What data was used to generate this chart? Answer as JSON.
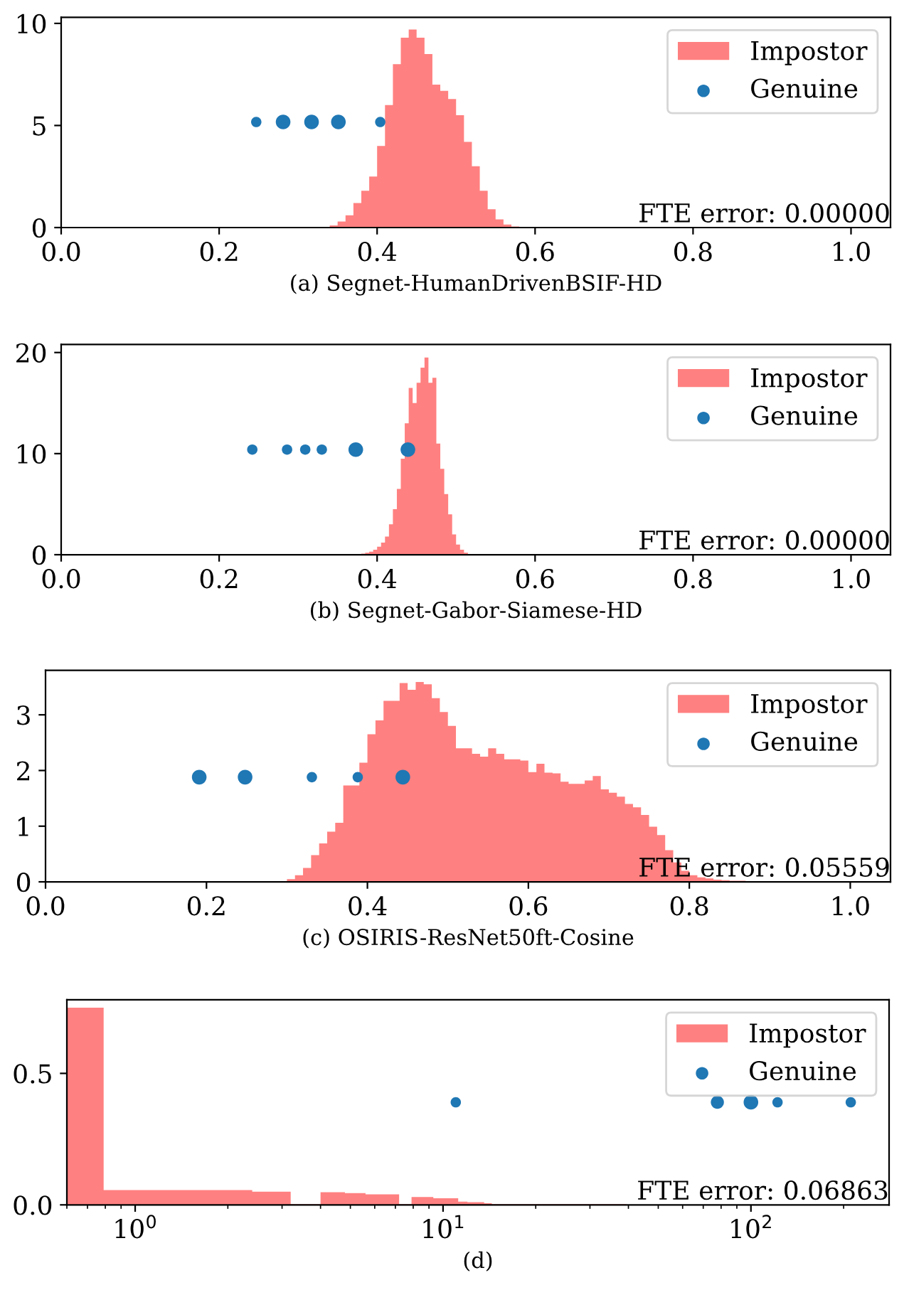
{
  "chart_data": [
    {
      "type": "histogram",
      "xlabel": "(a) Segnet-HumanDrivenBSIF-HD",
      "xlim": [
        0,
        1.05
      ],
      "ylim": [
        0,
        10.3
      ],
      "xticks": [
        {
          "value": 0,
          "label": "0.0"
        },
        0.2,
        0.4,
        0.6,
        0.8,
        {
          "value": 1,
          "label": "1.0"
        }
      ],
      "yticks": [
        0,
        5,
        10
      ],
      "legend": "top right",
      "annotations": [
        "FTE error: 0.00000"
      ],
      "series": [
        {
          "name": "Impostor",
          "color": "#ff8080",
          "bins": [
            0.34,
            0.35,
            0.36,
            0.37,
            0.38,
            0.39,
            0.4,
            0.41,
            0.42,
            0.43,
            0.44,
            0.45,
            0.46,
            0.47,
            0.48,
            0.49,
            0.5,
            0.51,
            0.52,
            0.53,
            0.54,
            0.55,
            0.56,
            0.57,
            0.58,
            0.59
          ],
          "values": [
            0.1,
            0.3,
            0.6,
            1.2,
            1.8,
            2.5,
            4.0,
            6.0,
            8.0,
            9.3,
            9.7,
            9.3,
            8.5,
            7.0,
            6.7,
            6.3,
            5.5,
            4.2,
            3.0,
            1.8,
            0.9,
            0.4,
            0.15,
            0.05,
            0.02
          ]
        },
        {
          "name": "Genuine",
          "type": "bubble",
          "color": "#1f77b4",
          "x": [
            0.247,
            0.281,
            0.317,
            0.351,
            0.404
          ],
          "values": [
            5.17,
            5.17,
            5.17,
            5.17,
            5.17
          ],
          "sizes": [
            0.5,
            1,
            1,
            1,
            0.5
          ]
        }
      ]
    },
    {
      "type": "histogram",
      "xlabel": "(b) Segnet-Gabor-Siamese-HD",
      "xlim": [
        0,
        1.05
      ],
      "ylim": [
        0,
        20.8
      ],
      "xticks": [
        {
          "value": 0,
          "label": "0.0"
        },
        0.2,
        0.4,
        0.6,
        0.8,
        {
          "value": 1,
          "label": "1.0"
        }
      ],
      "yticks": [
        0,
        10,
        20
      ],
      "legend": "top right",
      "annotations": [
        "FTE error: 0.00000"
      ],
      "series": [
        {
          "name": "Impostor",
          "color": "#ff8080",
          "bins": [
            0.38,
            0.385,
            0.39,
            0.395,
            0.4,
            0.405,
            0.41,
            0.415,
            0.42,
            0.425,
            0.43,
            0.435,
            0.44,
            0.445,
            0.45,
            0.455,
            0.46,
            0.465,
            0.47,
            0.475,
            0.48,
            0.485,
            0.49,
            0.495,
            0.5,
            0.505,
            0.51,
            0.515
          ],
          "values": [
            0.1,
            0.2,
            0.3,
            0.5,
            0.8,
            1.2,
            1.8,
            3.0,
            4.5,
            6.5,
            9.5,
            13,
            16.5,
            15,
            17,
            18.5,
            19.5,
            17,
            17.5,
            11,
            8.5,
            6,
            4,
            2,
            1,
            0.5,
            0.2
          ]
        },
        {
          "name": "Genuine",
          "type": "bubble",
          "color": "#1f77b4",
          "x": [
            0.242,
            0.286,
            0.309,
            0.33,
            0.373,
            0.439
          ],
          "values": [
            10.4,
            10.4,
            10.4,
            10.4,
            10.4,
            10.4
          ],
          "sizes": [
            0.5,
            0.5,
            0.5,
            0.5,
            1,
            1
          ]
        }
      ]
    },
    {
      "type": "histogram",
      "xlabel": "(c) OSIRIS-ResNet50ft-Cosine",
      "xlim": [
        0,
        1.05
      ],
      "ylim": [
        0,
        3.8
      ],
      "xticks": [
        {
          "value": 0,
          "label": "0.0"
        },
        0.2,
        0.4,
        0.6,
        0.8,
        {
          "value": 1,
          "label": "1.0"
        }
      ],
      "yticks": [
        0,
        1,
        2,
        3
      ],
      "legend": "top right",
      "annotations": [
        "FTE error: 0.05559"
      ],
      "series": [
        {
          "name": "Impostor",
          "color": "#ff8080",
          "bins": [
            0.3,
            0.31,
            0.32,
            0.33,
            0.34,
            0.35,
            0.36,
            0.37,
            0.38,
            0.39,
            0.4,
            0.41,
            0.42,
            0.43,
            0.44,
            0.45,
            0.46,
            0.47,
            0.48,
            0.49,
            0.5,
            0.51,
            0.52,
            0.53,
            0.54,
            0.55,
            0.56,
            0.57,
            0.58,
            0.59,
            0.6,
            0.61,
            0.62,
            0.63,
            0.64,
            0.65,
            0.66,
            0.67,
            0.68,
            0.69,
            0.7,
            0.71,
            0.72,
            0.73,
            0.74,
            0.75,
            0.76,
            0.77,
            0.78,
            0.79,
            0.8,
            0.81,
            0.82,
            0.83,
            0.84,
            0.85,
            0.86,
            0.87,
            0.88
          ],
          "values": [
            0.05,
            0.12,
            0.25,
            0.48,
            0.69,
            0.9,
            1.06,
            1.73,
            1.73,
            2.14,
            2.65,
            2.9,
            3.25,
            3.25,
            3.57,
            3.45,
            3.59,
            3.55,
            3.3,
            3.05,
            2.8,
            2.4,
            2.4,
            2.3,
            2.25,
            2.4,
            2.3,
            2.2,
            2.2,
            2.18,
            1.97,
            2.12,
            1.96,
            1.95,
            1.8,
            1.76,
            1.76,
            1.82,
            1.9,
            1.66,
            1.6,
            1.53,
            1.4,
            1.34,
            1.2,
            0.99,
            0.84,
            0.57,
            0.35,
            0.2,
            0.12,
            0.08,
            0.06,
            0.04,
            0.03,
            0.02,
            0.02,
            0.01
          ]
        },
        {
          "name": "Genuine",
          "type": "bubble",
          "color": "#1f77b4",
          "x": [
            0.191,
            0.248,
            0.331,
            0.388,
            0.444
          ],
          "values": [
            1.88,
            1.88,
            1.88,
            1.88,
            1.88
          ],
          "sizes": [
            1,
            1,
            0.5,
            0.5,
            1
          ]
        }
      ]
    },
    {
      "type": "histogram",
      "xlabel": "(d)",
      "log": "x",
      "xlim": [
        0.6,
        281
      ],
      "ylim": [
        0,
        0.78
      ],
      "xticks": [
        {
          "value": 1,
          "label": "10$^{0}$"
        },
        {
          "value": 10,
          "label": "10$^{1}$"
        },
        {
          "value": 100,
          "label": "10$^{2}$"
        }
      ],
      "yticks": [
        {
          "value": 0,
          "label": "0.0"
        },
        0.5
      ],
      "legend": "top right",
      "annotations": [
        "FTE error: 0.06863"
      ],
      "series": [
        {
          "name": "Impostor",
          "color": "#ff8080",
          "bins": [
            0.6,
            0.79,
            2.4,
            3.2,
            4.0,
            4.8,
            5.6,
            7.2,
            7.9,
            9.3,
            11.2,
            12,
            13.6,
            14.4,
            39.4
          ],
          "values": [
            0.75,
            0.056,
            0.05,
            0.003,
            0.048,
            0.045,
            0.04,
            0.003,
            0.03,
            0.025,
            0.012,
            0.01,
            0.006,
            0.003
          ]
        },
        {
          "name": "Genuine",
          "type": "bubble",
          "color": "#1f77b4",
          "x": [
            11.0,
            77.8,
            100,
            122,
            211
          ],
          "values": [
            0.39,
            0.39,
            0.39,
            0.39,
            0.39
          ],
          "sizes": [
            0.5,
            0.8,
            1,
            0.5,
            0.5
          ]
        }
      ]
    }
  ]
}
